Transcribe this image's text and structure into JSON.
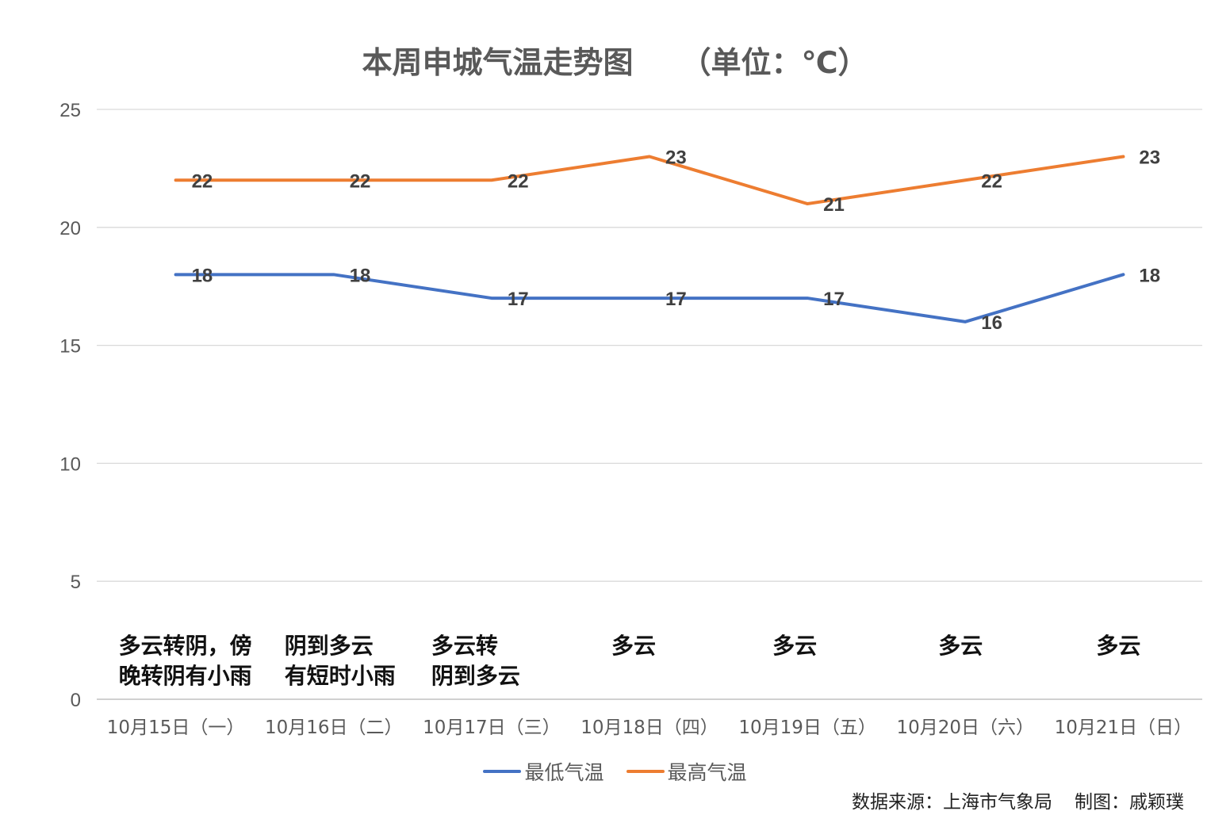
{
  "chart_data": {
    "type": "line",
    "title": "本周申城气温走势图",
    "unit": "（单位：℃）",
    "categories": [
      "10月15日（一）",
      "10月16日（二）",
      "10月17日（三）",
      "10月18日（四）",
      "10月19日（五）",
      "10月20日（六）",
      "10月21日（日）"
    ],
    "weather": [
      "多云转阴，傍\n晚转阴有小雨",
      "阴到多云\n有短时小雨",
      "多云转\n阴到多云",
      "多云",
      "多云",
      "多云",
      "多云"
    ],
    "series": [
      {
        "name": "最低气温",
        "color": "#4472C4",
        "values": [
          18,
          18,
          17,
          17,
          17,
          16,
          18
        ]
      },
      {
        "name": "最高气温",
        "color": "#ED7D31",
        "values": [
          22,
          22,
          22,
          23,
          21,
          22,
          23
        ]
      }
    ],
    "ylim": [
      0,
      25
    ],
    "yticks": [
      0,
      5,
      10,
      15,
      20,
      25
    ],
    "grid": true,
    "legend_position": "bottom"
  },
  "footer": {
    "source": "数据来源：上海市气象局",
    "author": "制图：戚颖璞"
  }
}
